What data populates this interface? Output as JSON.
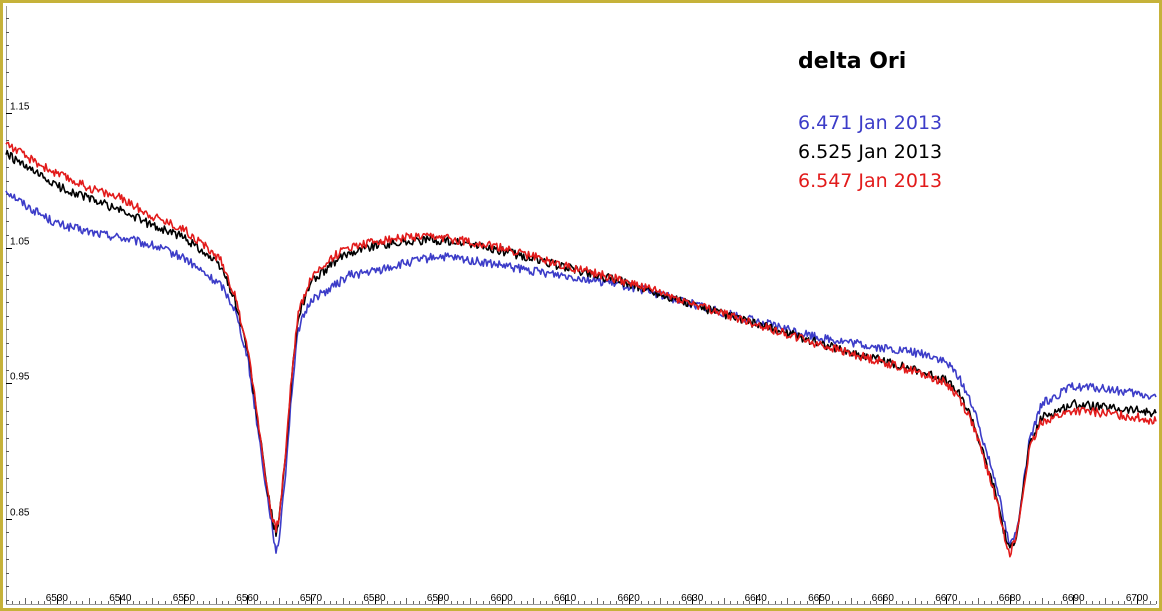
{
  "chart_data": {
    "type": "line",
    "title": "delta Ori",
    "xlabel": "",
    "ylabel": "",
    "xlim": [
      6522,
      6703
    ],
    "ylim": [
      0.787,
      1.229
    ],
    "x_ticks": [
      6530,
      6540,
      6550,
      6560,
      6570,
      6580,
      6590,
      6600,
      6610,
      6620,
      6630,
      6640,
      6650,
      6660,
      6670,
      6680,
      6690,
      6700
    ],
    "y_ticks": [
      0.85,
      0.95,
      1.05,
      1.15
    ],
    "y_tick_labels": [
      "0.85",
      "0.95",
      "1.05",
      "1.15"
    ],
    "legend_position": "top-right",
    "series": [
      {
        "name": "6.471 Jan 2013",
        "color": "#3c3cc8",
        "x": [
          6522,
          6525,
          6530,
          6535,
          6540,
          6545,
          6550,
          6553,
          6556,
          6558,
          6560,
          6562,
          6563,
          6564,
          6564.5,
          6565,
          6566,
          6567,
          6568,
          6570,
          6573,
          6576,
          6580,
          6585,
          6590,
          6595,
          6600,
          6605,
          6610,
          6620,
          6630,
          6640,
          6650,
          6655,
          6660,
          6665,
          6668,
          6670,
          6672,
          6674,
          6676,
          6678,
          6679,
          6680,
          6681,
          6682,
          6683,
          6685,
          6690,
          6695,
          6700,
          6703
        ],
        "values": [
          1.093,
          1.082,
          1.068,
          1.062,
          1.058,
          1.052,
          1.043,
          1.032,
          1.022,
          1.005,
          0.97,
          0.905,
          0.87,
          0.842,
          0.822,
          0.836,
          0.885,
          0.945,
          0.99,
          1.012,
          1.02,
          1.03,
          1.033,
          1.039,
          1.044,
          1.041,
          1.037,
          1.033,
          1.03,
          1.022,
          1.009,
          0.996,
          0.984,
          0.98,
          0.976,
          0.973,
          0.97,
          0.965,
          0.955,
          0.935,
          0.905,
          0.875,
          0.85,
          0.83,
          0.84,
          0.87,
          0.905,
          0.935,
          0.948,
          0.946,
          0.942,
          0.94
        ]
      },
      {
        "name": "6.525 Jan 2013",
        "color": "#000000",
        "x": [
          6522,
          6525,
          6530,
          6535,
          6540,
          6545,
          6550,
          6553,
          6556,
          6558,
          6560,
          6562,
          6563,
          6564,
          6564.5,
          6565,
          6566,
          6567,
          6568,
          6570,
          6573,
          6576,
          6580,
          6585,
          6590,
          6595,
          6600,
          6605,
          6610,
          6620,
          6630,
          6640,
          6650,
          6655,
          6660,
          6665,
          6668,
          6670,
          6672,
          6674,
          6676,
          6678,
          6679,
          6680,
          6681,
          6682,
          6683,
          6685,
          6690,
          6695,
          6700,
          6703
        ],
        "values": [
          1.12,
          1.11,
          1.096,
          1.087,
          1.078,
          1.067,
          1.058,
          1.048,
          1.035,
          1.012,
          0.975,
          0.91,
          0.875,
          0.848,
          0.84,
          0.85,
          0.895,
          0.955,
          1.0,
          1.025,
          1.037,
          1.047,
          1.052,
          1.055,
          1.056,
          1.053,
          1.048,
          1.042,
          1.036,
          1.024,
          1.008,
          0.994,
          0.98,
          0.973,
          0.967,
          0.96,
          0.956,
          0.952,
          0.942,
          0.925,
          0.895,
          0.865,
          0.842,
          0.826,
          0.838,
          0.868,
          0.902,
          0.925,
          0.935,
          0.932,
          0.93,
          0.928
        ]
      },
      {
        "name": "6.547 Jan 2013",
        "color": "#e21b1b",
        "x": [
          6522,
          6525,
          6530,
          6535,
          6540,
          6545,
          6550,
          6553,
          6556,
          6558,
          6560,
          6562,
          6563,
          6564,
          6564.5,
          6565,
          6566,
          6567,
          6568,
          6570,
          6573,
          6576,
          6580,
          6585,
          6590,
          6595,
          6600,
          6605,
          6610,
          6620,
          6630,
          6640,
          6650,
          6655,
          6660,
          6665,
          6668,
          6670,
          6672,
          6674,
          6676,
          6678,
          6679,
          6680,
          6681,
          6682,
          6683,
          6685,
          6690,
          6695,
          6700,
          6703
        ],
        "values": [
          1.128,
          1.118,
          1.105,
          1.095,
          1.087,
          1.074,
          1.064,
          1.053,
          1.04,
          1.015,
          0.978,
          0.912,
          0.876,
          0.848,
          0.842,
          0.852,
          0.898,
          0.958,
          1.003,
          1.028,
          1.042,
          1.051,
          1.055,
          1.058,
          1.058,
          1.055,
          1.05,
          1.044,
          1.037,
          1.025,
          1.009,
          0.994,
          0.979,
          0.972,
          0.966,
          0.959,
          0.954,
          0.95,
          0.94,
          0.922,
          0.893,
          0.862,
          0.84,
          0.825,
          0.836,
          0.866,
          0.9,
          0.922,
          0.93,
          0.928,
          0.925,
          0.922
        ]
      }
    ]
  }
}
